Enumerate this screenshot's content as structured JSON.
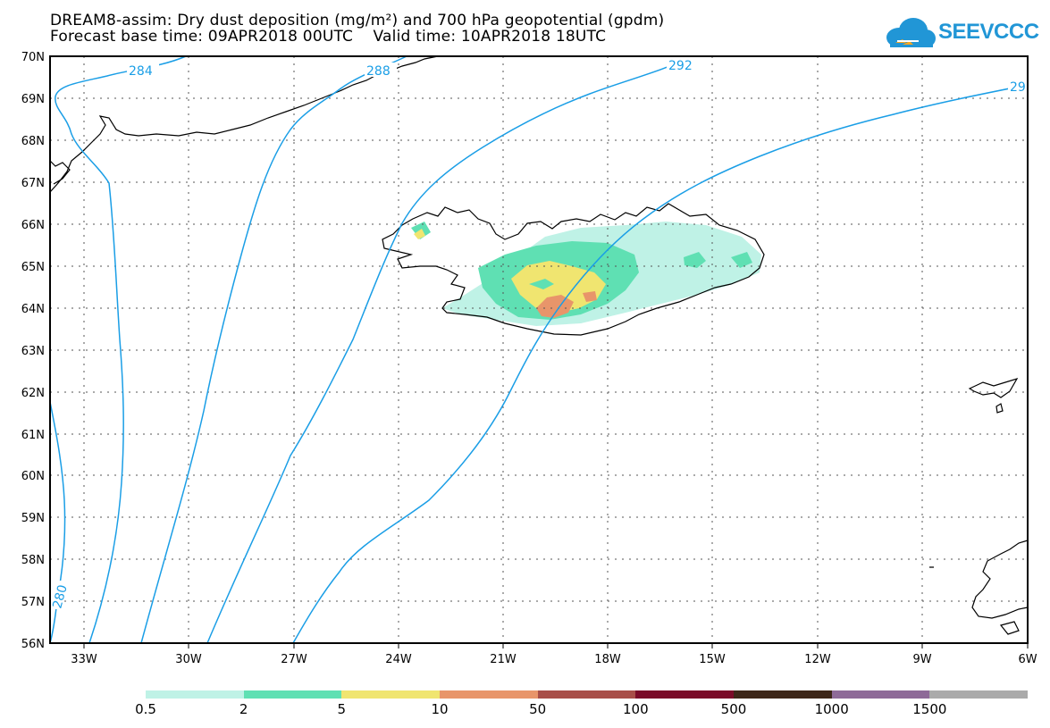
{
  "title_line1": "DREAM8-assim: Dry dust deposition (mg/m²) and 700 hPa geopotential (gpdm)",
  "title_line2": "Forecast base time: 09APR2018 00UTC    Valid time: 10APR2018 18UTC",
  "logo_text": "SEEVCCC",
  "lat_labels": [
    "70N",
    "69N",
    "68N",
    "67N",
    "66N",
    "65N",
    "64N",
    "63N",
    "62N",
    "61N",
    "60N",
    "59N",
    "58N",
    "57N",
    "56N"
  ],
  "lon_labels": [
    "33W",
    "30W",
    "27W",
    "24W",
    "21W",
    "18W",
    "15W",
    "12W",
    "9W",
    "6W"
  ],
  "contour_labels": [
    "284",
    "288",
    "292",
    "29",
    "280"
  ],
  "colorbar": {
    "colors": [
      "#bff2e6",
      "#5fe0b3",
      "#f0e570",
      "#e8956a",
      "#a84e48",
      "#7a0a28",
      "#3d2618",
      "#8e6a98",
      "#aaaaaa"
    ],
    "labels": [
      "0.5",
      "2",
      "5",
      "10",
      "50",
      "100",
      "500",
      "1000",
      "1500"
    ]
  }
}
